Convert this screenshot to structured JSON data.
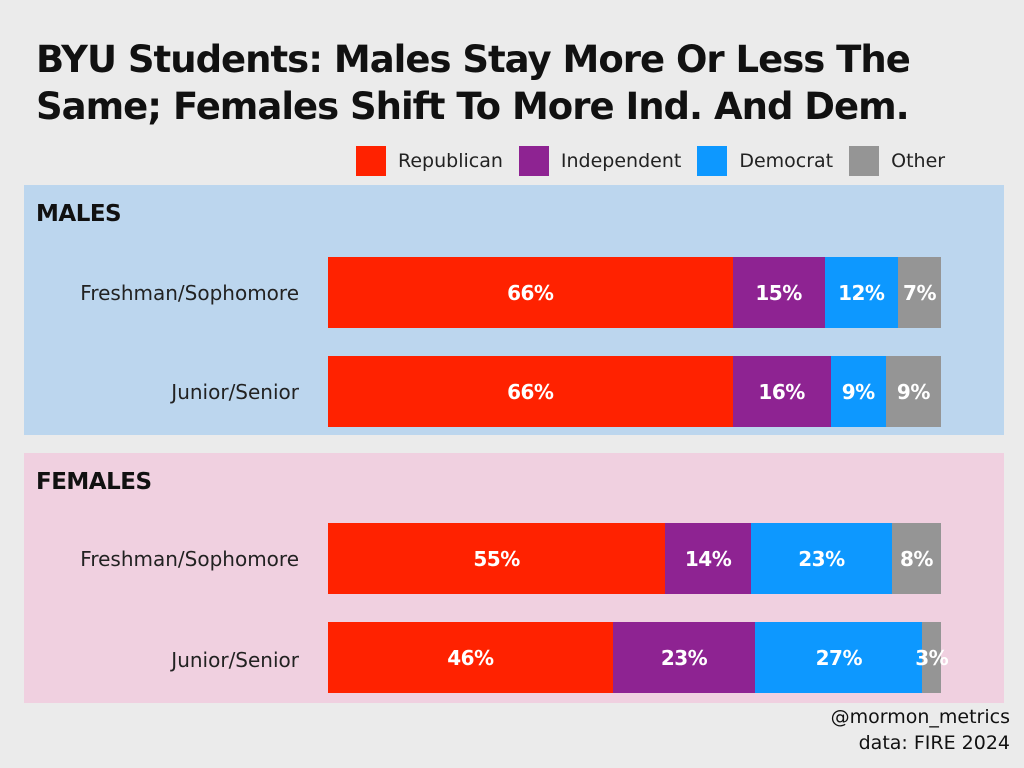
{
  "chart_data": {
    "type": "bar",
    "orientation": "horizontal",
    "stacked": true,
    "percent_stacked": true,
    "title_lines": [
      "BYU Students: Males Stay More Or Less The",
      "Same; Females Shift To More Ind. And Dem."
    ],
    "legend": [
      {
        "name": "Republican",
        "color": "#ff2200"
      },
      {
        "name": "Independent",
        "color": "#8e2392"
      },
      {
        "name": "Democrat",
        "color": "#0d98ff"
      },
      {
        "name": "Other",
        "color": "#959595"
      }
    ],
    "groups": [
      {
        "name": "MALES",
        "rows": [
          {
            "label": "Freshman/Sophomore",
            "values": [
              66,
              15,
              12,
              7
            ],
            "value_labels": [
              "66%",
              "15%",
              "12%",
              "7%"
            ]
          },
          {
            "label": "Junior/Senior",
            "values": [
              66,
              16,
              9,
              9
            ],
            "value_labels": [
              "66%",
              "16%",
              "9%",
              "9%"
            ]
          }
        ]
      },
      {
        "name": "FEMALES",
        "rows": [
          {
            "label": "Freshman/Sophomore",
            "values": [
              55,
              14,
              23,
              8
            ],
            "value_labels": [
              "55%",
              "14%",
              "23%",
              "8%"
            ]
          },
          {
            "label": "Junior/Senior",
            "values": [
              46,
              23,
              27,
              3
            ],
            "value_labels": [
              "46%",
              "23%",
              "27%",
              "3%"
            ]
          }
        ]
      }
    ]
  },
  "credits": {
    "handle": "@mormon_metrics",
    "source": "data: FIRE 2024"
  }
}
